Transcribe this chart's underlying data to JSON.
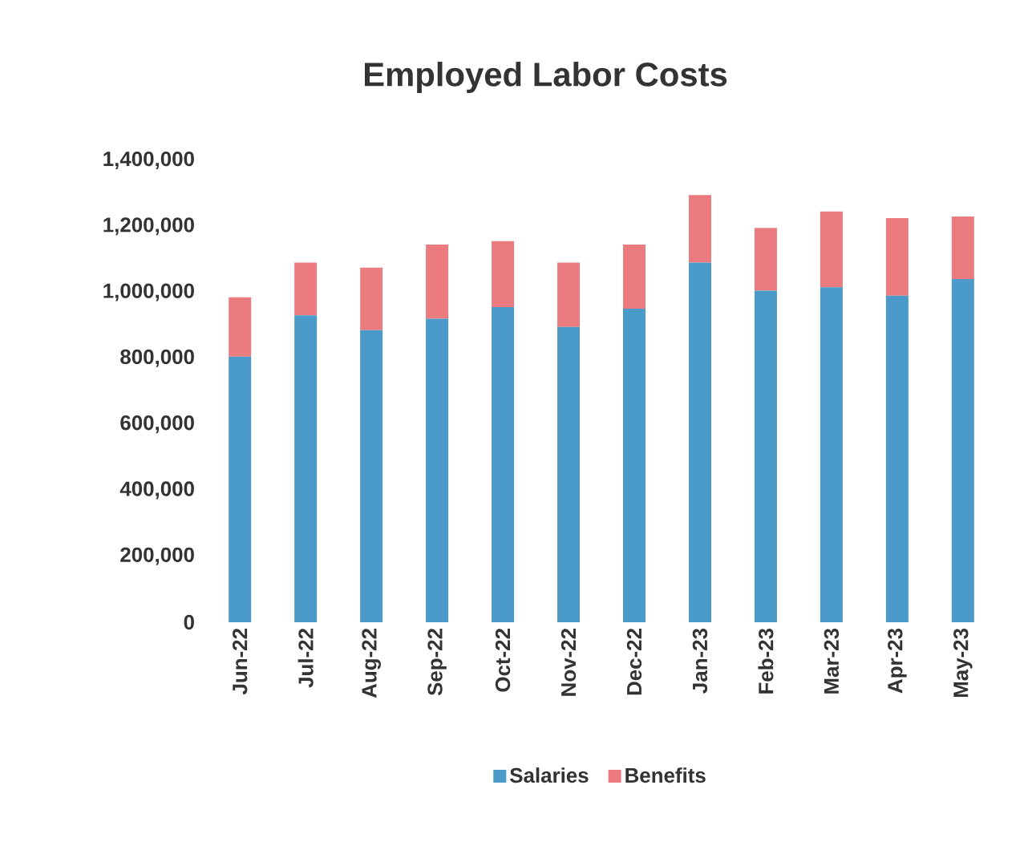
{
  "chart_data": {
    "type": "bar",
    "title": "Employed Labor Costs",
    "stacked": true,
    "legend": "bottom",
    "grid": false,
    "categories": [
      "Jun-22",
      "Jul-22",
      "Aug-22",
      "Sep-22",
      "Oct-22",
      "Nov-22",
      "Dec-22",
      "Jan-23",
      "Feb-23",
      "Mar-23",
      "Apr-23",
      "May-23"
    ],
    "ylim": [
      0,
      1400000
    ],
    "yticks": [
      {
        "value": 0,
        "label": "0"
      },
      {
        "value": 200000,
        "label": "200,000"
      },
      {
        "value": 400000,
        "label": "400,000"
      },
      {
        "value": 600000,
        "label": "600,000"
      },
      {
        "value": 800000,
        "label": "800,000"
      },
      {
        "value": 1000000,
        "label": "1,000,000"
      },
      {
        "value": 1200000,
        "label": "1,200,000"
      },
      {
        "value": 1400000,
        "label": "1,400,000"
      }
    ],
    "series": [
      {
        "name": "Salaries",
        "color": "#4a9bc9",
        "values": [
          805000,
          930000,
          885000,
          920000,
          955000,
          895000,
          950000,
          1090000,
          1005000,
          1015000,
          990000,
          1040000
        ]
      },
      {
        "name": "Benefits",
        "color": "#ec7b80",
        "values": [
          180000,
          160000,
          190000,
          225000,
          200000,
          195000,
          195000,
          205000,
          190000,
          230000,
          235000,
          190000
        ]
      }
    ]
  }
}
